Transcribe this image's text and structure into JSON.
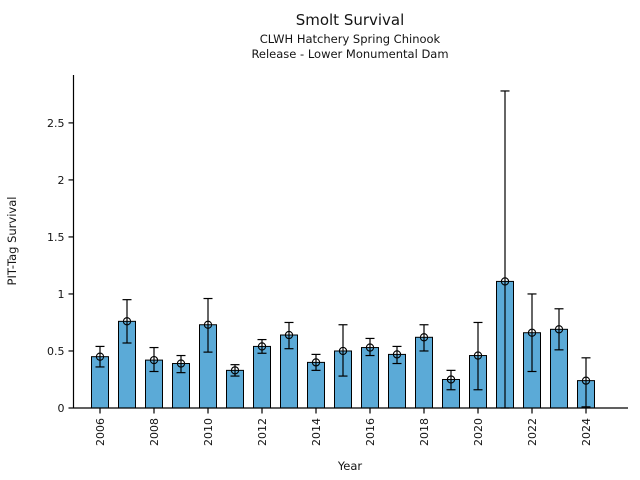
{
  "chart_data": {
    "type": "bar",
    "title": "Smolt Survival",
    "subtitle1": "CLWH Hatchery Spring Chinook",
    "subtitle2": "Release - Lower Monumental Dam",
    "xlabel": "Year",
    "ylabel": "PIT-Tag Survival",
    "categories": [
      2006,
      2007,
      2008,
      2009,
      2010,
      2011,
      2012,
      2013,
      2014,
      2015,
      2016,
      2017,
      2018,
      2019,
      2020,
      2021,
      2022,
      2023,
      2024
    ],
    "values": [
      0.45,
      0.76,
      0.42,
      0.39,
      0.73,
      0.33,
      0.54,
      0.64,
      0.4,
      0.5,
      0.53,
      0.47,
      0.62,
      0.25,
      0.46,
      1.11,
      0.66,
      0.69,
      0.24
    ],
    "error_low": [
      0.36,
      0.57,
      0.32,
      0.31,
      0.49,
      0.28,
      0.48,
      0.52,
      0.33,
      0.28,
      0.46,
      0.39,
      0.5,
      0.16,
      0.16,
      0.0,
      0.32,
      0.51,
      0.01
    ],
    "error_high": [
      0.54,
      0.95,
      0.53,
      0.46,
      0.96,
      0.38,
      0.6,
      0.75,
      0.47,
      0.73,
      0.61,
      0.54,
      0.73,
      0.33,
      0.75,
      2.78,
      1.0,
      0.87,
      0.44
    ],
    "ylim": [
      0,
      2.92
    ],
    "yticks": [
      0,
      0.5,
      1,
      1.5,
      2,
      2.5
    ],
    "ytick_labels": [
      "0",
      "0.5",
      "1",
      "1.5",
      "2",
      "2.5"
    ],
    "xticks": [
      2006,
      2008,
      2010,
      2012,
      2014,
      2016,
      2018,
      2020,
      2022,
      2024
    ],
    "grid": false,
    "legend": null,
    "marker": "open-circle",
    "bar_color": "#5BAAD7",
    "edge_color": "#000000",
    "errorbar_color": "#000000",
    "background_color": "#ffffff"
  }
}
